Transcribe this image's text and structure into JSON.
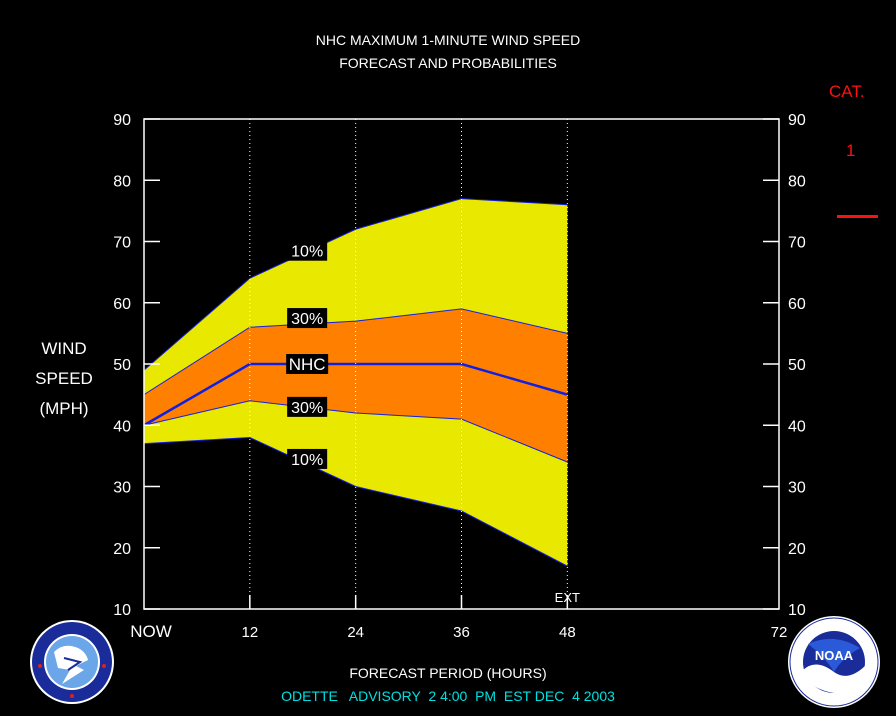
{
  "title_line1": "NHC MAXIMUM 1-MINUTE WIND SPEED",
  "title_line2": "FORECAST AND PROBABILITIES",
  "ylabel_lines": [
    "WIND",
    "SPEED",
    "(MPH)"
  ],
  "xlabel": "FORECAST PERIOD (HOURS)",
  "advisory": "ODETTE   ADVISORY  2 4:00  PM  EST DEC  4 2003",
  "category": {
    "label": "CAT.",
    "value": "1"
  },
  "logos": {
    "left": {
      "name": "NWS",
      "text": "NATIONAL WEATHER SERVICE"
    },
    "right": {
      "name": "NOAA",
      "text": "NOAA",
      "ring_text": "NATIONAL OCEANIC AND ATMOSPHERIC ADMINISTRATION · U.S. DEPARTMENT OF COMMERCE"
    }
  },
  "colors": {
    "background": "#000000",
    "band_10_90": "#e8e800",
    "band_30_70": "#ff8000",
    "nhc_line": "#1020e0",
    "grid_dotted": "#ffffff",
    "category_line": "#ff1010",
    "footer_text": "#00e0e0"
  },
  "chart_data": {
    "type": "area",
    "title": "NHC MAXIMUM 1-MINUTE WIND SPEED FORECAST AND PROBABILITIES",
    "xlabel": "FORECAST PERIOD (HOURS)",
    "ylabel": "WIND SPEED (MPH)",
    "xlim": [
      0,
      72
    ],
    "ylim": [
      10,
      90
    ],
    "x_ticks": [
      {
        "value": 0,
        "label": "NOW"
      },
      {
        "value": 12,
        "label": "12"
      },
      {
        "value": 24,
        "label": "24"
      },
      {
        "value": 36,
        "label": "36"
      },
      {
        "value": 48,
        "label": "48"
      },
      {
        "value": 72,
        "label": "72"
      }
    ],
    "y_ticks": [
      10,
      20,
      30,
      40,
      50,
      60,
      70,
      80,
      90
    ],
    "vertical_dotted_lines": [
      12,
      24,
      36,
      48
    ],
    "x": [
      0,
      12,
      24,
      36,
      48
    ],
    "series": [
      {
        "name": "10%",
        "bound": "upper",
        "values": [
          49,
          64,
          72,
          77,
          76
        ]
      },
      {
        "name": "30%",
        "bound": "upper",
        "values": [
          45,
          56,
          57,
          59,
          55
        ]
      },
      {
        "name": "NHC",
        "values": [
          40,
          50,
          50,
          50,
          45
        ]
      },
      {
        "name": "30%",
        "bound": "lower",
        "values": [
          40,
          44,
          42,
          41,
          34
        ]
      },
      {
        "name": "10%",
        "bound": "lower",
        "values": [
          37,
          38,
          30,
          26,
          17
        ]
      }
    ],
    "labels": [
      {
        "text": "10%",
        "x": 18.5,
        "y": 68.5
      },
      {
        "text": "30%",
        "x": 18.5,
        "y": 57.5
      },
      {
        "text": "NHC",
        "x": 18.5,
        "y": 50
      },
      {
        "text": "30%",
        "x": 18.5,
        "y": 43
      },
      {
        "text": "10%",
        "x": 18.5,
        "y": 34.5
      }
    ],
    "annotations": [
      {
        "text": "EXT",
        "x": 48
      }
    ],
    "category_marker": {
      "label": "CAT.",
      "value": "1"
    }
  }
}
